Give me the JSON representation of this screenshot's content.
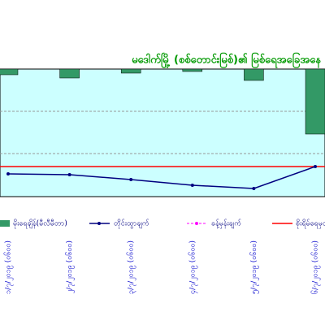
{
  "chart_data": {
    "type": "bar-line",
    "title": "မဒေါက်မြို့ (စစ်တောင်းမြစ်)၏ မြစ်ရေအခြေအနေ",
    "categories": [
      "၁/၇/၂၀၁၉ (၀၆၀၀)",
      "၂/၇/၂၀၁၉ (၀၆၀၀)",
      "၃/၇/၂၀၁၉ (၀၆၀၀)",
      "၄/၇/၂၀၁၉ (၀၆၀၀)",
      "၅/၇/၂၀၁၉ (၀၆၀၀)",
      "၆/၇/၂၀၁၉ (၀၆၀၀)"
    ],
    "rain": {
      "name": "မိုးရေချိန်(မီလီမီတာ)",
      "color": "#339966",
      "values": [
        7,
        11,
        5,
        3,
        14,
        80
      ],
      "ylim": [
        0,
        157
      ]
    },
    "series": [
      {
        "name": "တိုင်းထွာချက်",
        "color": "#000080",
        "values": [
          28,
          27,
          21,
          14,
          10,
          37
        ]
      },
      {
        "name": "ခန့်မှန်းချက်",
        "color": "#ff00ff",
        "values": [
          null,
          null,
          null,
          null,
          null,
          null
        ]
      }
    ],
    "danger": {
      "name": "စိုးရိမ်ရေမှတ်",
      "color": "#ff0000",
      "value": 37
    },
    "ylim": [
      0,
      157
    ],
    "grid": true
  }
}
